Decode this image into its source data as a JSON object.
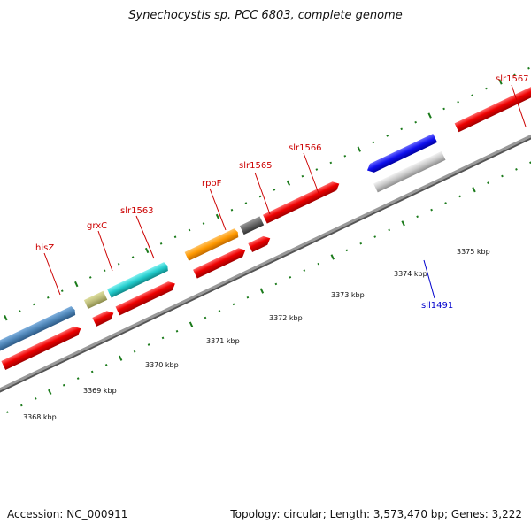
{
  "title": "Synechocystis sp. PCC 6803, complete genome",
  "footer": {
    "accession": "Accession: NC_000911",
    "summary": "Topology: circular; Length: 3,573,470 bp; Genes: 3,222"
  },
  "colors": {
    "backbone": "#8a8a8a",
    "tick": "#1a7a1a",
    "label_forward": "#cc0000",
    "label_reverse": "#0000cc"
  },
  "scale_labels": [
    "3368 kbp",
    "3369 kbp",
    "3370 kbp",
    "3371 kbp",
    "3372 kbp",
    "3373 kbp",
    "3374 kbp",
    "3375 kbp"
  ],
  "genes": [
    {
      "name": "hisZ",
      "strand": "+",
      "color": "#4f86b8"
    },
    {
      "name": "grxC",
      "strand": "+",
      "color": "#bcbc7a"
    },
    {
      "name": "slr1563",
      "strand": "+",
      "color": "#22cccc"
    },
    {
      "name": "rpoF",
      "strand": "+",
      "color": "#ff9900"
    },
    {
      "name": "slr1565",
      "strand": "+",
      "color": "#666666"
    },
    {
      "name": "slr1566",
      "strand": "+",
      "color": "#ee0000"
    },
    {
      "name": "slr1567",
      "strand": "+",
      "color": "#ee0000"
    },
    {
      "name": "sll1491",
      "strand": "-",
      "color": "#1010ee"
    }
  ]
}
